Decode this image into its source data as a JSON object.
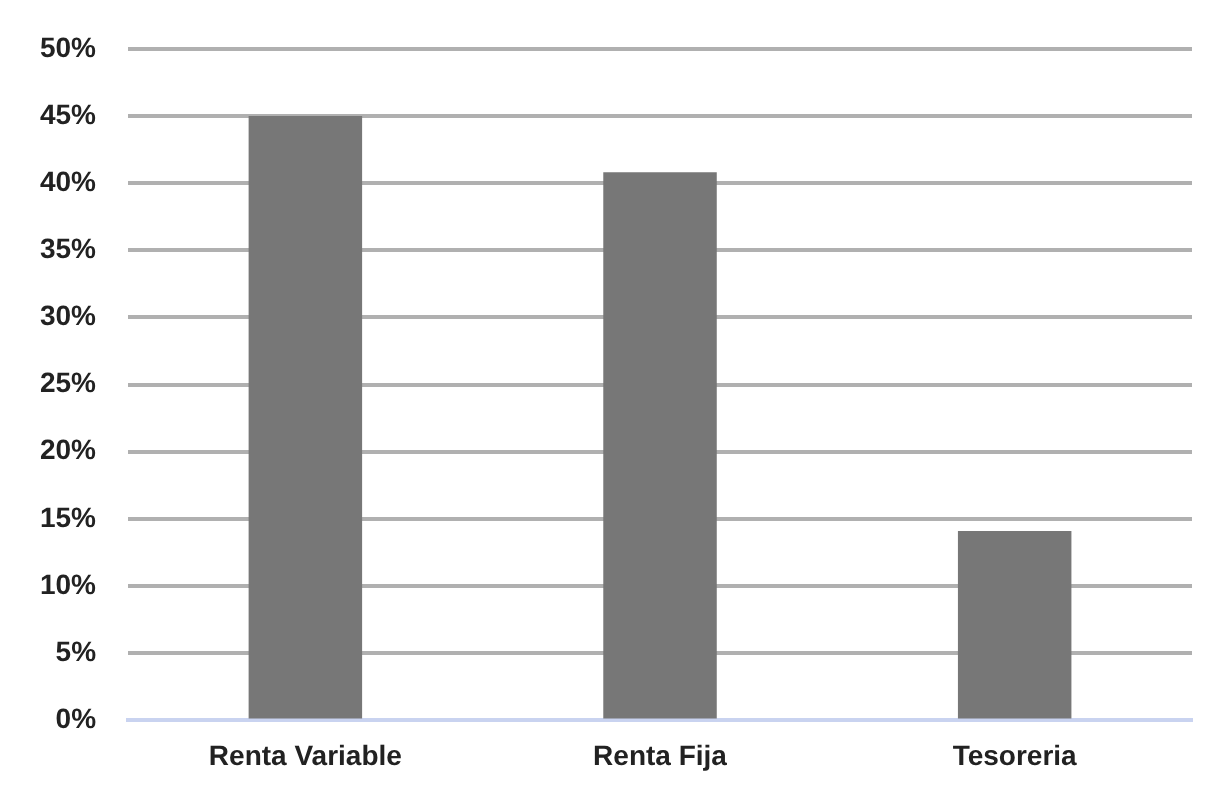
{
  "chart_data": {
    "type": "bar",
    "categories": [
      "Renta Variable",
      "Renta Fija",
      "Tesoreria"
    ],
    "values": [
      45,
      40.8,
      14.1
    ],
    "color": "#777777",
    "ylim": [
      0,
      50
    ],
    "yticks": [
      {
        "value": 0,
        "label": "0%"
      },
      {
        "value": 5,
        "label": "5%"
      },
      {
        "value": 10,
        "label": "10%"
      },
      {
        "value": 15,
        "label": "15%"
      },
      {
        "value": 20,
        "label": "20%"
      },
      {
        "value": 25,
        "label": "25%"
      },
      {
        "value": 30,
        "label": "30%"
      },
      {
        "value": 35,
        "label": "35%"
      },
      {
        "value": 40,
        "label": "40%"
      },
      {
        "value": 45,
        "label": "45%"
      },
      {
        "value": 50,
        "label": "50%"
      }
    ],
    "grid": "y",
    "legend": false
  }
}
